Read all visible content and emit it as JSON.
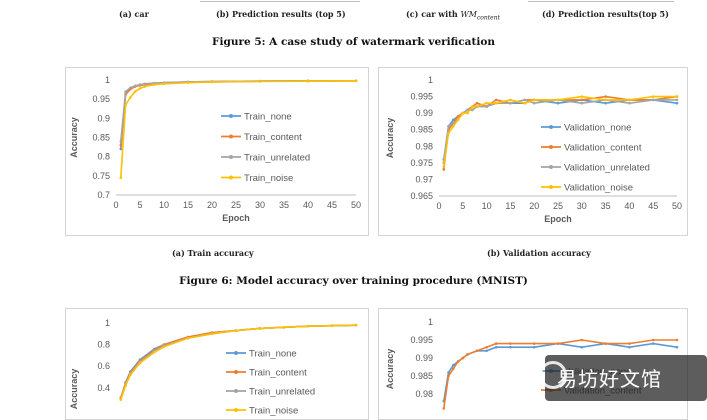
{
  "fig5": {
    "sub_a": "(a) car",
    "sub_b": "(b) Prediction results (top 5)",
    "sub_c_prefix": "(c) car with ",
    "sub_c_math": "WM",
    "sub_c_sub": "content",
    "sub_d": "(d) Prediction results(top 5)",
    "caption": "Figure 5: A case study of watermark verification"
  },
  "fig6": {
    "sub_a": "(a) Train accuracy",
    "sub_b": "(b) Validation accuracy",
    "caption": "Figure 6: Model accuracy over training procedure (MNIST)"
  },
  "watermark": {
    "text": "易坊好文馆"
  },
  "colors": {
    "none": "#5b9bd5",
    "content": "#ed7d31",
    "unrelated": "#a5a5a5",
    "noise": "#ffc000"
  },
  "chart_data": [
    {
      "id": "train_mnist",
      "type": "line",
      "xlabel": "Epoch",
      "ylabel": "Accuracy",
      "xlim": [
        0,
        50
      ],
      "ylim": [
        0.7,
        1
      ],
      "xticks": [
        0,
        5,
        10,
        15,
        20,
        25,
        30,
        35,
        40,
        45,
        50
      ],
      "yticks": [
        0.7,
        0.75,
        0.8,
        0.85,
        0.9,
        0.95,
        1
      ],
      "ytick_labels": [
        "0.7",
        "0.75",
        "0.8",
        "0.85",
        "0.9",
        "0.95",
        "1"
      ],
      "legend": "center-right",
      "series": [
        {
          "name": "Train_none",
          "key": "none",
          "x": [
            1,
            2,
            3,
            4,
            5,
            6,
            8,
            10,
            15,
            20,
            30,
            40,
            50
          ],
          "y": [
            0.82,
            0.965,
            0.978,
            0.984,
            0.987,
            0.989,
            0.991,
            0.993,
            0.995,
            0.996,
            0.997,
            0.998,
            0.998
          ]
        },
        {
          "name": "Train_content",
          "key": "content",
          "x": [
            1,
            2,
            3,
            4,
            5,
            6,
            8,
            10,
            15,
            20,
            30,
            40,
            50
          ],
          "y": [
            0.83,
            0.962,
            0.976,
            0.983,
            0.986,
            0.988,
            0.991,
            0.992,
            0.994,
            0.995,
            0.997,
            0.997,
            0.998
          ]
        },
        {
          "name": "Train_unrelated",
          "key": "unrelated",
          "x": [
            1,
            2,
            3,
            4,
            5,
            6,
            8,
            10,
            15,
            20,
            30,
            40,
            50
          ],
          "y": [
            0.84,
            0.97,
            0.98,
            0.985,
            0.988,
            0.99,
            0.992,
            0.993,
            0.995,
            0.996,
            0.997,
            0.998,
            0.998
          ]
        },
        {
          "name": "Train_noise",
          "key": "noise",
          "x": [
            1,
            2,
            3,
            4,
            5,
            6,
            8,
            10,
            15,
            20,
            30,
            40,
            50
          ],
          "y": [
            0.745,
            0.935,
            0.955,
            0.97,
            0.978,
            0.983,
            0.988,
            0.99,
            0.993,
            0.995,
            0.996,
            0.997,
            0.998
          ]
        }
      ]
    },
    {
      "id": "val_mnist",
      "type": "line",
      "xlabel": "Epoch",
      "ylabel": "Accuracy",
      "xlim": [
        0,
        50
      ],
      "ylim": [
        0.965,
        1
      ],
      "xticks": [
        0,
        5,
        10,
        15,
        20,
        25,
        30,
        35,
        40,
        45,
        50
      ],
      "yticks": [
        0.965,
        0.97,
        0.975,
        0.98,
        0.985,
        0.99,
        0.995,
        1
      ],
      "ytick_labels": [
        "0.965",
        "0.97",
        "0.975",
        "0.98",
        "0.985",
        "0.99",
        "0.995",
        "1"
      ],
      "legend": "center-right",
      "series": [
        {
          "name": "Validation_none",
          "key": "none",
          "x": [
            1,
            2,
            3,
            4,
            5,
            6,
            7,
            8,
            10,
            12,
            15,
            18,
            20,
            25,
            30,
            35,
            40,
            45,
            50
          ],
          "y": [
            0.976,
            0.986,
            0.988,
            0.989,
            0.99,
            0.991,
            0.991,
            0.992,
            0.992,
            0.993,
            0.993,
            0.993,
            0.994,
            0.993,
            0.994,
            0.993,
            0.994,
            0.994,
            0.993
          ]
        },
        {
          "name": "Validation_content",
          "key": "content",
          "x": [
            1,
            2,
            3,
            4,
            5,
            6,
            7,
            8,
            10,
            12,
            15,
            18,
            20,
            25,
            30,
            35,
            40,
            45,
            50
          ],
          "y": [
            0.973,
            0.985,
            0.987,
            0.989,
            0.99,
            0.991,
            0.992,
            0.993,
            0.992,
            0.994,
            0.993,
            0.994,
            0.994,
            0.994,
            0.994,
            0.995,
            0.994,
            0.994,
            0.995
          ]
        },
        {
          "name": "Validation_unrelated",
          "key": "unrelated",
          "x": [
            1,
            2,
            3,
            4,
            5,
            6,
            7,
            8,
            10,
            12,
            15,
            18,
            20,
            25,
            30,
            35,
            40,
            45,
            50
          ],
          "y": [
            0.975,
            0.986,
            0.987,
            0.988,
            0.99,
            0.991,
            0.991,
            0.992,
            0.992,
            0.993,
            0.993,
            0.994,
            0.993,
            0.994,
            0.993,
            0.994,
            0.993,
            0.994,
            0.994
          ]
        },
        {
          "name": "Validation_noise",
          "key": "noise",
          "x": [
            1,
            2,
            3,
            4,
            5,
            6,
            7,
            8,
            10,
            12,
            15,
            18,
            20,
            25,
            30,
            35,
            40,
            45,
            50
          ],
          "y": [
            0.974,
            0.984,
            0.986,
            0.988,
            0.99,
            0.99,
            0.992,
            0.992,
            0.993,
            0.993,
            0.994,
            0.993,
            0.994,
            0.994,
            0.995,
            0.994,
            0.994,
            0.995,
            0.995
          ]
        }
      ]
    },
    {
      "id": "train_partial",
      "type": "line",
      "xlabel": "",
      "ylabel": "Accuracy",
      "xlim": [
        0,
        50
      ],
      "ylim": [
        0,
        1
      ],
      "xticks": [],
      "yticks": [
        0.4,
        0.6,
        0.8,
        1
      ],
      "ytick_labels": [
        "0.4",
        "0.6",
        "0.8",
        "1"
      ],
      "legend": "center-right",
      "series": [
        {
          "name": "Train_none",
          "key": "none",
          "x": [
            1,
            2,
            3,
            5,
            8,
            10,
            15,
            20,
            25,
            30,
            35,
            40,
            45,
            50
          ],
          "y": [
            0.3,
            0.45,
            0.55,
            0.66,
            0.76,
            0.8,
            0.87,
            0.91,
            0.93,
            0.95,
            0.96,
            0.97,
            0.975,
            0.98
          ]
        },
        {
          "name": "Train_content",
          "key": "content",
          "x": [
            1,
            2,
            3,
            5,
            8,
            10,
            15,
            20,
            25,
            30,
            35,
            40,
            45,
            50
          ],
          "y": [
            0.31,
            0.44,
            0.54,
            0.65,
            0.75,
            0.8,
            0.87,
            0.91,
            0.93,
            0.95,
            0.96,
            0.97,
            0.975,
            0.98
          ]
        },
        {
          "name": "Train_unrelated",
          "key": "unrelated",
          "x": [
            1,
            2,
            3,
            5,
            8,
            10,
            15,
            20,
            25,
            30,
            35,
            40,
            45,
            50
          ],
          "y": [
            0.3,
            0.43,
            0.53,
            0.64,
            0.74,
            0.79,
            0.86,
            0.9,
            0.93,
            0.95,
            0.96,
            0.97,
            0.975,
            0.98
          ]
        },
        {
          "name": "Train_noise",
          "key": "noise",
          "x": [
            1,
            2,
            3,
            5,
            8,
            10,
            15,
            20,
            25,
            30,
            35,
            40,
            45,
            50
          ],
          "y": [
            0.29,
            0.42,
            0.52,
            0.63,
            0.73,
            0.78,
            0.86,
            0.9,
            0.93,
            0.95,
            0.96,
            0.97,
            0.975,
            0.98
          ]
        }
      ]
    },
    {
      "id": "val_partial",
      "type": "line",
      "xlabel": "",
      "ylabel": "Accuracy",
      "xlim": [
        0,
        50
      ],
      "ylim": [
        0.97,
        1
      ],
      "xticks": [],
      "yticks": [
        0.98,
        0.985,
        0.99,
        0.995,
        1
      ],
      "ytick_labels": [
        "0.98",
        "0.985",
        "0.99",
        "0.995",
        "1"
      ],
      "legend": "center-right",
      "series": [
        {
          "name": "Validation_none",
          "key": "none",
          "x": [
            1,
            2,
            3,
            4,
            5,
            6,
            8,
            10,
            12,
            15,
            20,
            25,
            30,
            35,
            40,
            45,
            50
          ],
          "y": [
            0.978,
            0.986,
            0.988,
            0.989,
            0.99,
            0.991,
            0.992,
            0.992,
            0.993,
            0.993,
            0.993,
            0.994,
            0.993,
            0.994,
            0.993,
            0.994,
            0.993
          ]
        },
        {
          "name": "Validation_content",
          "key": "content",
          "x": [
            1,
            2,
            3,
            4,
            5,
            6,
            8,
            10,
            12,
            15,
            20,
            25,
            30,
            35,
            40,
            45,
            50
          ],
          "y": [
            0.976,
            0.985,
            0.987,
            0.989,
            0.99,
            0.991,
            0.992,
            0.993,
            0.994,
            0.994,
            0.994,
            0.994,
            0.995,
            0.994,
            0.994,
            0.995,
            0.995
          ]
        }
      ]
    }
  ]
}
